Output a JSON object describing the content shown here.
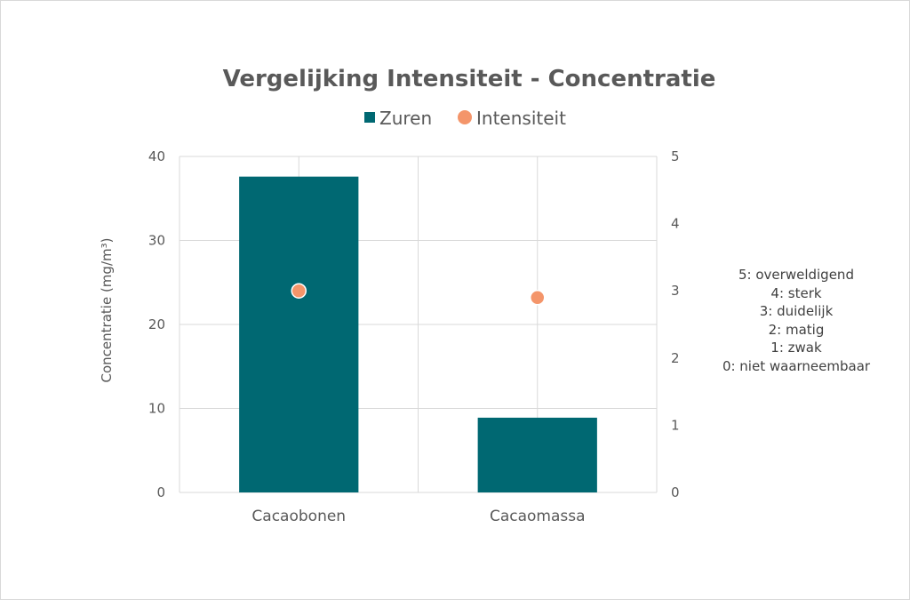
{
  "chart_data": {
    "type": "bar",
    "title": "Vergelijking Intensiteit - Concentratie",
    "categories": [
      "Cacaobonen",
      "Cacaomassa"
    ],
    "series": [
      {
        "name": "Zuren",
        "type": "bar",
        "axis": "left",
        "values": [
          37.6,
          8.9
        ],
        "color": "#006872"
      },
      {
        "name": "Intensiteit",
        "type": "scatter",
        "axis": "right",
        "values": [
          3.0,
          2.9
        ],
        "color": "#f4956a"
      }
    ],
    "ylabel": "Concentratie (mg/m³)",
    "ylim": [
      0,
      40
    ],
    "yticks": [
      "0",
      "10",
      "20",
      "30",
      "40"
    ],
    "y2lim": [
      0,
      5
    ],
    "y2ticks": [
      "0",
      "1",
      "2",
      "3",
      "4",
      "5"
    ],
    "grid": true,
    "legend_position": "top"
  },
  "scale_note": [
    "5: overweldigend",
    "4: sterk",
    "3: duidelijk",
    "2: matig",
    "1: zwak",
    "0: niet waarneembaar"
  ]
}
